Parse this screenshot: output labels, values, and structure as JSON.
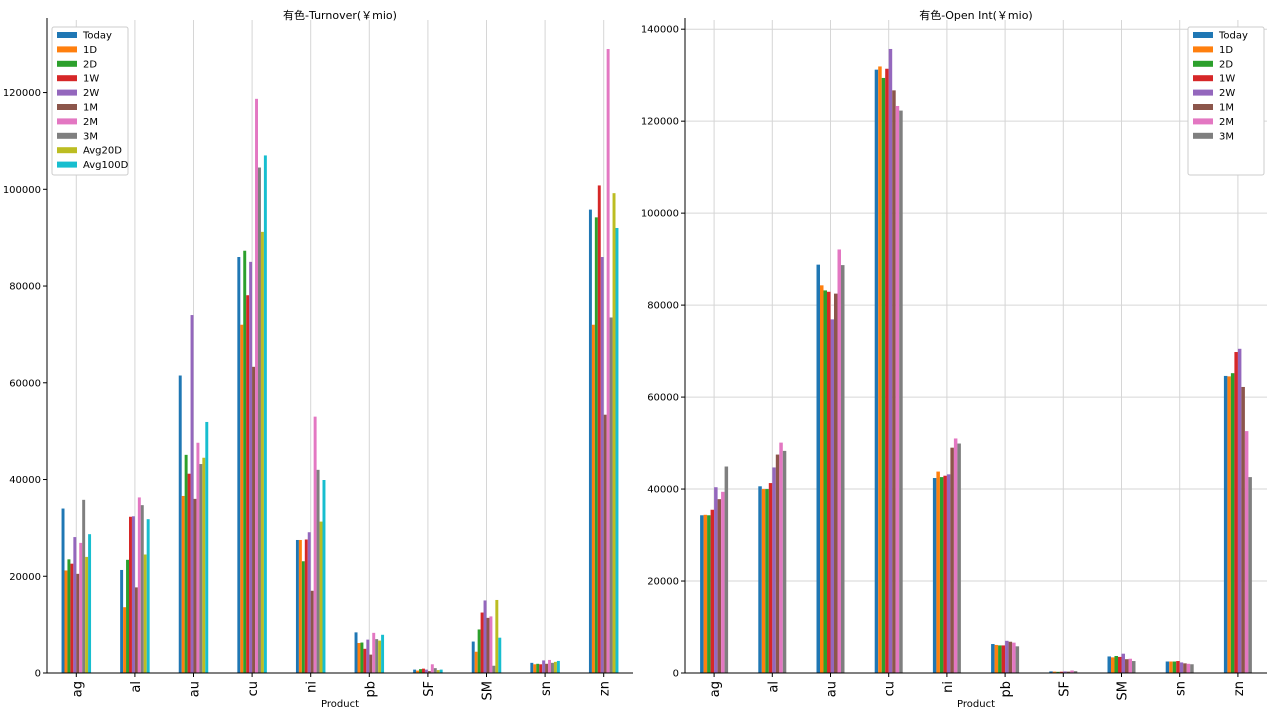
{
  "series_colors": [
    "#1f77b4",
    "#ff7f0e",
    "#2ca02c",
    "#d62728",
    "#9467bd",
    "#8c564b",
    "#e377c2",
    "#7f7f7f",
    "#bcbd22",
    "#17becf"
  ],
  "chart_data": [
    {
      "type": "bar",
      "title": "有色-Turnover(￥mio)",
      "xlabel": "Product",
      "ylabel": "",
      "ylim": [
        0,
        135000
      ],
      "yticks": [
        0,
        20000,
        40000,
        60000,
        80000,
        100000,
        120000
      ],
      "grid": "vertical",
      "legend_position": "top-left",
      "categories": [
        "ag",
        "al",
        "au",
        "cu",
        "ni",
        "pb",
        "SF",
        "SM",
        "sn",
        "zn"
      ],
      "series": [
        {
          "name": "Today",
          "values": [
            34000,
            21300,
            61500,
            86000,
            27500,
            8400,
            700,
            6500,
            2100,
            95800
          ]
        },
        {
          "name": "1D",
          "values": [
            21200,
            13600,
            36600,
            72000,
            27500,
            6200,
            500,
            4400,
            1800,
            72000
          ]
        },
        {
          "name": "2D",
          "values": [
            23500,
            23400,
            45100,
            87300,
            23100,
            6300,
            800,
            9000,
            1900,
            94200
          ]
        },
        {
          "name": "1W",
          "values": [
            22600,
            32300,
            41200,
            78100,
            27600,
            5000,
            900,
            12500,
            1800,
            100800
          ]
        },
        {
          "name": "2W",
          "values": [
            28100,
            32400,
            74000,
            85000,
            29100,
            6900,
            700,
            15000,
            2600,
            86000
          ]
        },
        {
          "name": "1M",
          "values": [
            20500,
            17700,
            36000,
            63300,
            17000,
            3800,
            400,
            11400,
            1900,
            53400
          ]
        },
        {
          "name": "2M",
          "values": [
            26900,
            36300,
            47600,
            118700,
            53000,
            8300,
            1800,
            11700,
            2700,
            129000
          ]
        },
        {
          "name": "3M",
          "values": [
            35800,
            34700,
            43200,
            104500,
            42000,
            7000,
            1000,
            1500,
            2100,
            73500
          ]
        },
        {
          "name": "Avg20D",
          "values": [
            24000,
            24500,
            44500,
            91200,
            31300,
            6700,
            600,
            15100,
            2300,
            99200
          ]
        },
        {
          "name": "Avg100D",
          "values": [
            28700,
            31800,
            51900,
            107000,
            39900,
            7900,
            700,
            7300,
            2500,
            92000
          ]
        }
      ]
    },
    {
      "type": "bar",
      "title": "有色-Open Int(￥mio)",
      "xlabel": "Product",
      "ylabel": "",
      "ylim": [
        0,
        142000
      ],
      "yticks": [
        0,
        20000,
        40000,
        60000,
        80000,
        100000,
        120000,
        140000
      ],
      "grid": "both",
      "legend_position": "top-right",
      "categories": [
        "ag",
        "al",
        "au",
        "cu",
        "ni",
        "pb",
        "SF",
        "SM",
        "sn",
        "zn"
      ],
      "series": [
        {
          "name": "Today",
          "values": [
            34300,
            40600,
            88800,
            131200,
            42400,
            6300,
            350,
            3600,
            2500,
            64600
          ]
        },
        {
          "name": "1D",
          "values": [
            34400,
            40000,
            84300,
            131900,
            43800,
            6100,
            300,
            3400,
            2500,
            64500
          ]
        },
        {
          "name": "2D",
          "values": [
            34300,
            40000,
            83200,
            129400,
            42600,
            6000,
            250,
            3700,
            2500,
            65200
          ]
        },
        {
          "name": "1W",
          "values": [
            35500,
            41300,
            82900,
            131400,
            42900,
            6000,
            280,
            3500,
            2600,
            69800
          ]
        },
        {
          "name": "2W",
          "values": [
            40400,
            44700,
            76900,
            135700,
            43200,
            7000,
            350,
            4200,
            2300,
            70500
          ]
        },
        {
          "name": "1M",
          "values": [
            37800,
            47500,
            82500,
            126700,
            49000,
            6800,
            300,
            3000,
            2100,
            62200
          ]
        },
        {
          "name": "2M",
          "values": [
            39400,
            50100,
            92100,
            123300,
            51000,
            6600,
            550,
            3100,
            2000,
            52600
          ]
        },
        {
          "name": "3M",
          "values": [
            44900,
            48300,
            88700,
            122300,
            49900,
            5800,
            400,
            2600,
            1900,
            42600
          ]
        }
      ]
    }
  ]
}
